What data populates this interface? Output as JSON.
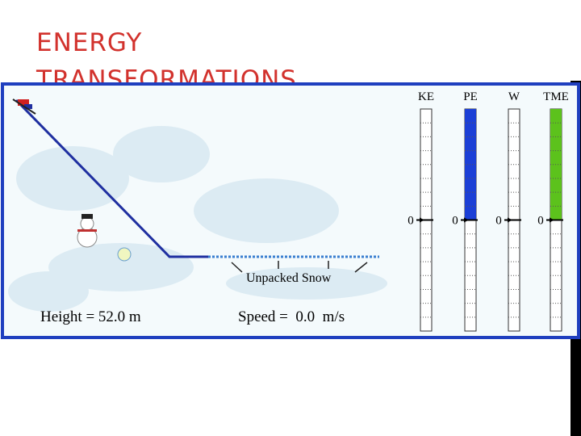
{
  "slide": {
    "title_lines": [
      "ENERGY",
      "TRANSFORMATIONS"
    ]
  },
  "simulation": {
    "height_label": "Height = 52.0 m",
    "speed_label": "Speed =  0.0  m/s",
    "annotation": "Unpacked Snow"
  },
  "chart_data": {
    "type": "bar",
    "categories": [
      "KE",
      "PE",
      "W",
      "TME"
    ],
    "values": [
      0,
      8,
      0,
      8
    ],
    "colors": [
      "#1b3fd6",
      "#1b3fd6",
      "#1b3fd6",
      "#5cc21c"
    ],
    "ylim": [
      -8,
      8
    ],
    "yticks": [
      0
    ]
  }
}
